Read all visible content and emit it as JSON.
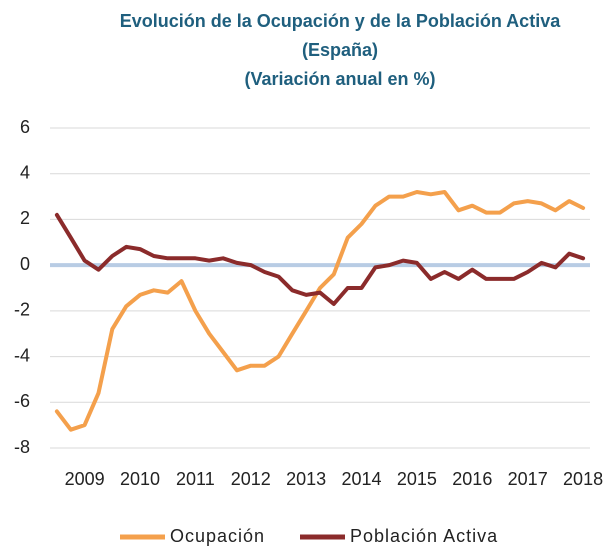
{
  "chart_data": {
    "type": "line",
    "title": "Evolución de la Ocupación y de la Población Activa",
    "subtitle": "(España)",
    "subtitle2": "(Variación anual en %)",
    "categories": [
      null,
      null,
      "2009",
      null,
      null,
      null,
      "2010",
      null,
      null,
      null,
      "2011",
      null,
      null,
      null,
      "2012",
      null,
      null,
      null,
      "2013",
      null,
      null,
      null,
      "2014",
      null,
      null,
      null,
      "2015",
      null,
      null,
      null,
      "2016",
      null,
      null,
      null,
      "2017",
      null,
      null,
      null,
      "2018"
    ],
    "series": [
      {
        "name": "Ocupación",
        "color": "#f4a04c",
        "values": [
          -6.4,
          -7.2,
          -7.0,
          -5.6,
          -2.8,
          -1.8,
          -1.3,
          -1.1,
          -1.2,
          -0.7,
          -2.0,
          -3.0,
          -3.8,
          -4.6,
          -4.4,
          -4.4,
          -4.0,
          -3.0,
          -2.0,
          -1.0,
          -0.4,
          1.2,
          1.8,
          2.6,
          3.0,
          3.0,
          3.2,
          3.1,
          3.2,
          2.4,
          2.6,
          2.3,
          2.3,
          2.7,
          2.8,
          2.7,
          2.4,
          2.8,
          2.5
        ]
      },
      {
        "name": "Población Activa",
        "color": "#8b2b2b",
        "values": [
          2.2,
          1.2,
          0.2,
          -0.2,
          0.4,
          0.8,
          0.7,
          0.4,
          0.3,
          0.3,
          0.3,
          0.2,
          0.3,
          0.1,
          0.0,
          -0.3,
          -0.5,
          -1.1,
          -1.3,
          -1.2,
          -1.7,
          -1.0,
          -1.0,
          -0.1,
          0.0,
          0.2,
          0.1,
          -0.6,
          -0.3,
          -0.6,
          -0.2,
          -0.6,
          -0.6,
          -0.6,
          -0.3,
          0.1,
          -0.1,
          0.5,
          0.3
        ]
      }
    ],
    "ylim": [
      -8,
      6
    ],
    "yticks": [
      -8,
      -6,
      -4,
      -2,
      0,
      2,
      4,
      6
    ],
    "grid": true,
    "legend": "bottom"
  }
}
